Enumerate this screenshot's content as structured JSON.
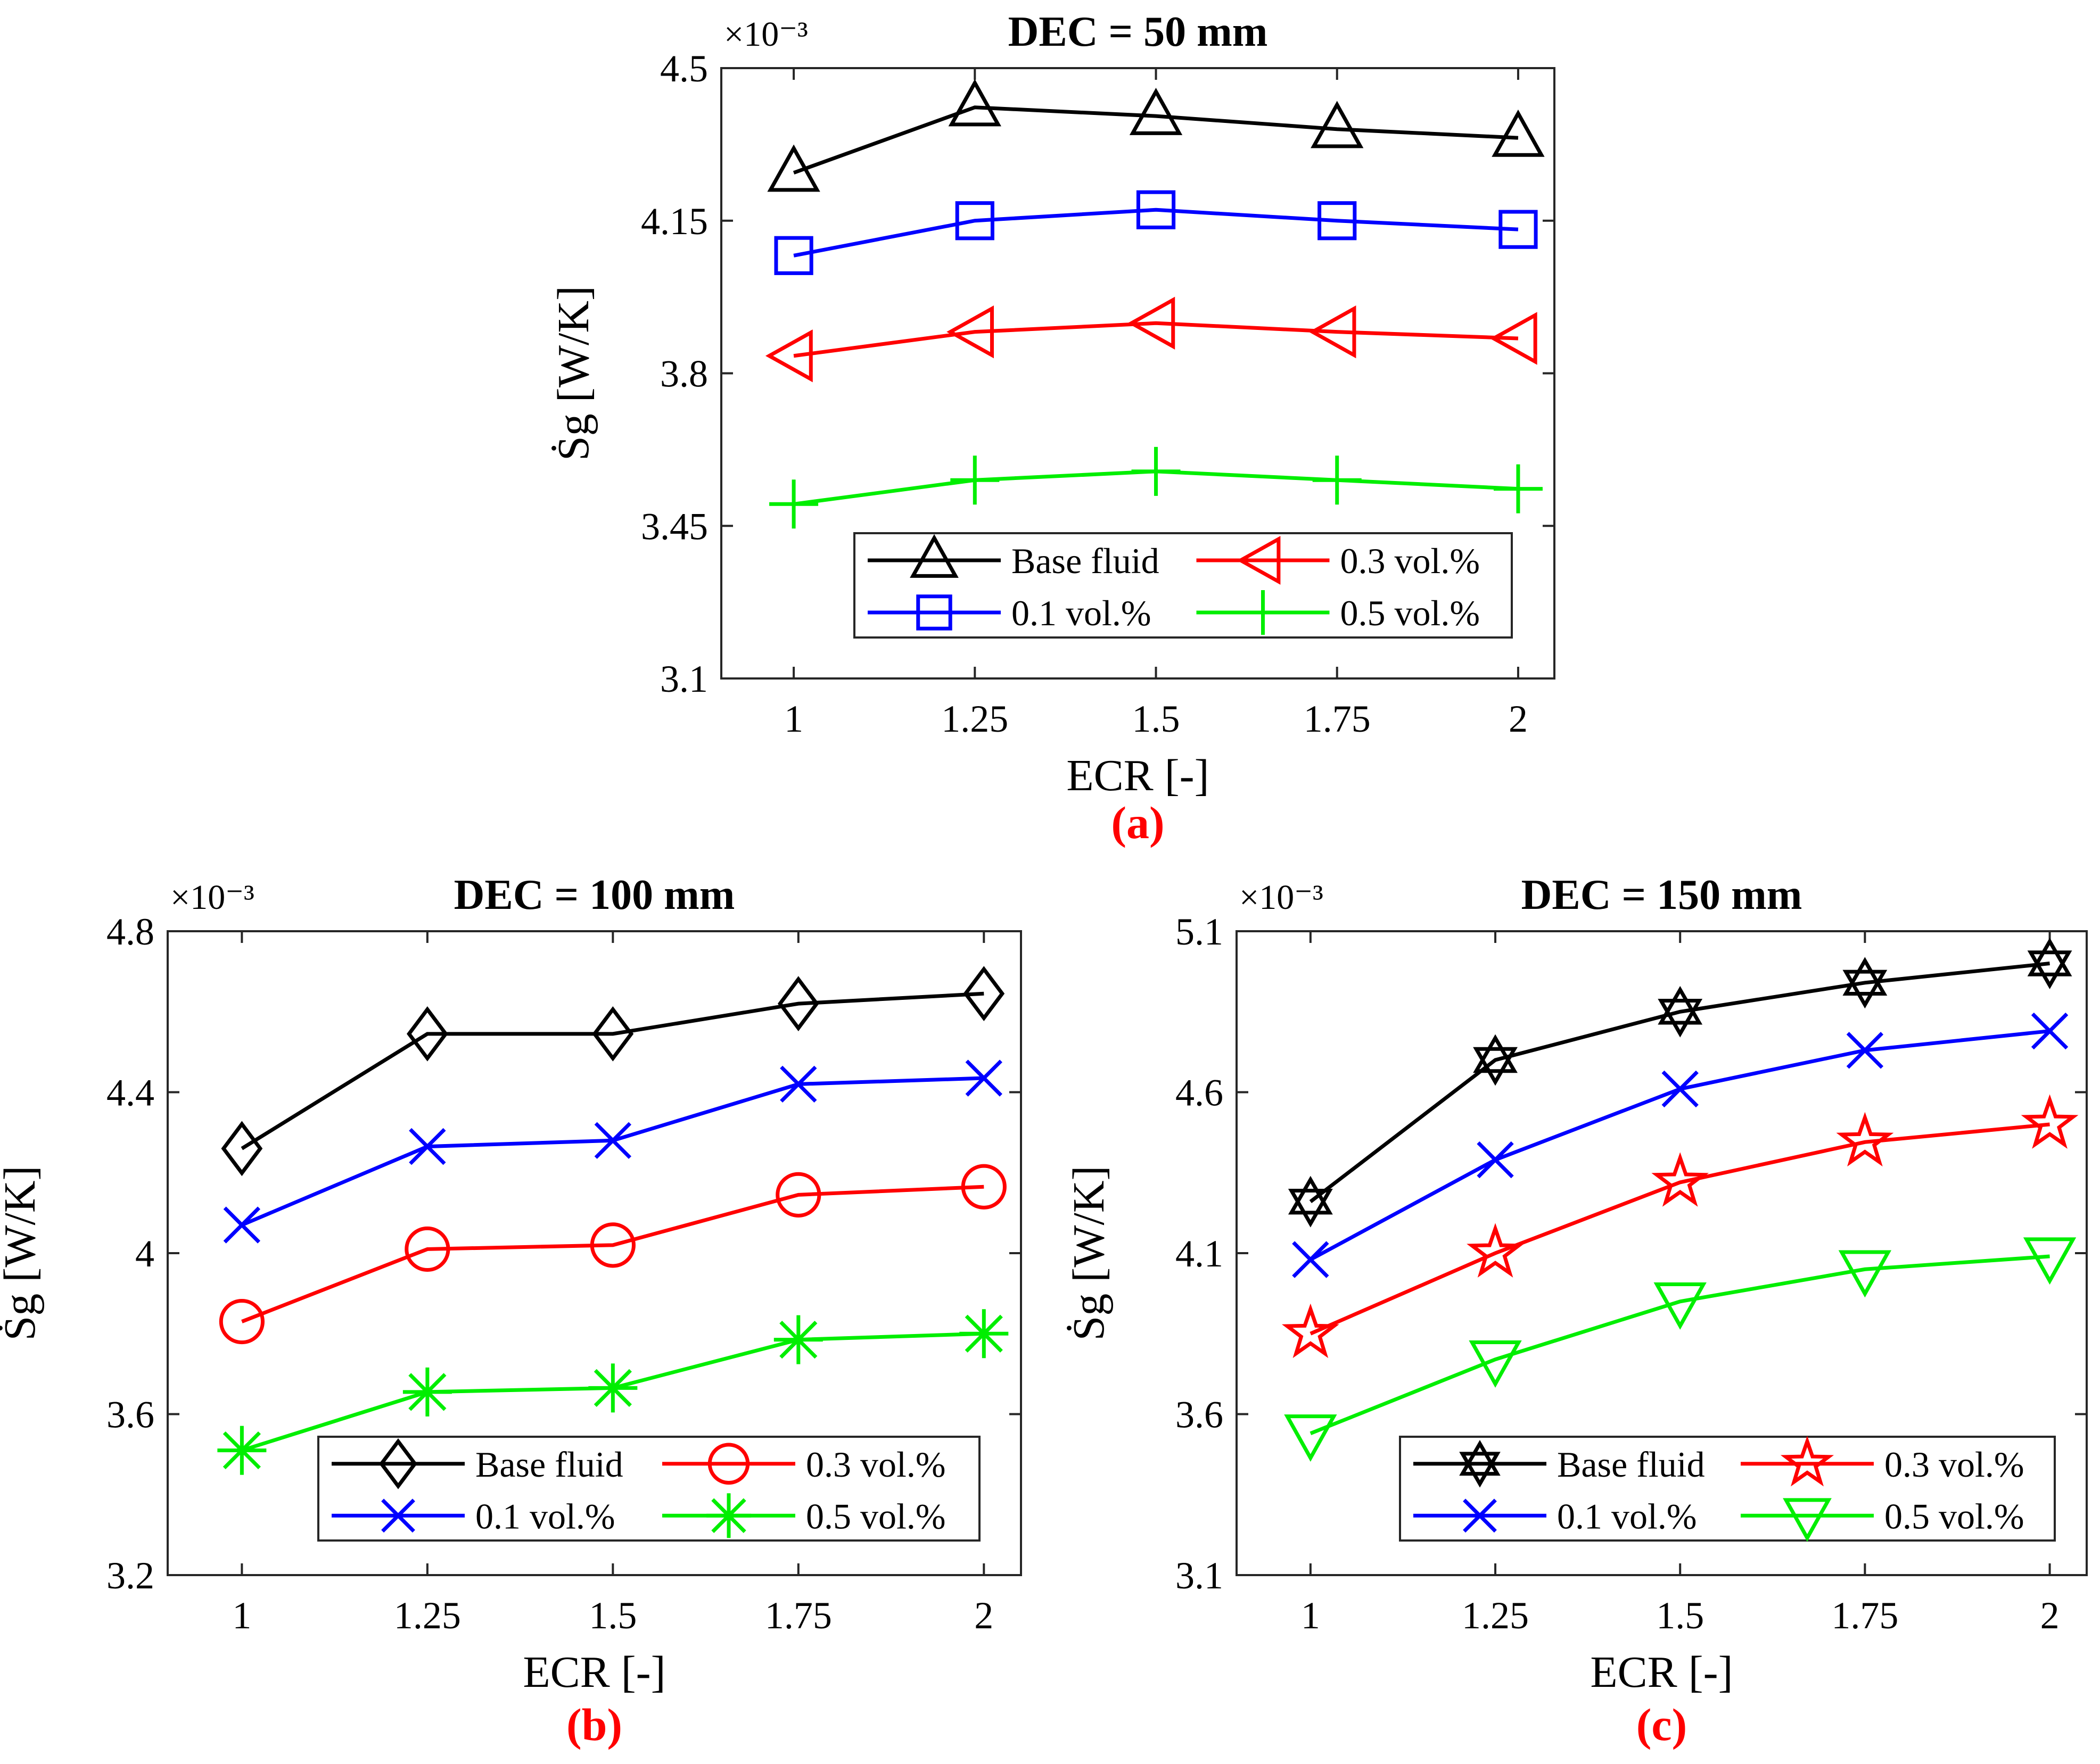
{
  "chart_data": [
    {
      "type": "line",
      "panel_label": "(a)",
      "title": "DEC = 50 mm",
      "xlabel": "ECR [-]",
      "ylabel": "Ṡg [W/K]",
      "y_multiplier": "×10⁻³",
      "x": [
        1,
        1.25,
        1.5,
        1.75,
        2
      ],
      "xticks": [
        "1",
        "1.25",
        "1.5",
        "1.75",
        "2"
      ],
      "yticks": [
        "3.1",
        "3.45",
        "3.8",
        "4.15",
        "4.5"
      ],
      "ylim": [
        3.1,
        4.5
      ],
      "grid": false,
      "legend_position": "bottom-right",
      "series": [
        {
          "name": "Base fluid",
          "values": [
            4.26,
            4.41,
            4.39,
            4.36,
            4.34
          ],
          "color": "#000000",
          "marker": "triangle-up"
        },
        {
          "name": "0.1 vol.%",
          "values": [
            4.07,
            4.15,
            4.175,
            4.15,
            4.13
          ],
          "color": "#0000ff",
          "marker": "square"
        },
        {
          "name": "0.3 vol.%",
          "values": [
            3.84,
            3.895,
            3.915,
            3.895,
            3.88
          ],
          "color": "#ff0000",
          "marker": "triangle-left"
        },
        {
          "name": "0.5 vol.%",
          "values": [
            3.5,
            3.555,
            3.575,
            3.555,
            3.535
          ],
          "color": "#00ee00",
          "marker": "plus"
        }
      ]
    },
    {
      "type": "line",
      "panel_label": "(b)",
      "title": "DEC = 100 mm",
      "xlabel": "ECR [-]",
      "ylabel": "Ṡg [W/K]",
      "y_multiplier": "×10⁻³",
      "x": [
        1,
        1.25,
        1.5,
        1.75,
        2
      ],
      "xticks": [
        "1",
        "1.25",
        "1.5",
        "1.75",
        "2"
      ],
      "yticks": [
        "3.2",
        "3.6",
        "4",
        "4.4",
        "4.8"
      ],
      "ylim": [
        3.2,
        4.8
      ],
      "grid": false,
      "legend_position": "bottom-right",
      "series": [
        {
          "name": "Base fluid",
          "values": [
            4.26,
            4.545,
            4.545,
            4.62,
            4.645
          ],
          "color": "#000000",
          "marker": "diamond"
        },
        {
          "name": "0.1 vol.%",
          "values": [
            4.07,
            4.265,
            4.28,
            4.42,
            4.435
          ],
          "color": "#0000ff",
          "marker": "x"
        },
        {
          "name": "0.3 vol.%",
          "values": [
            3.83,
            4.01,
            4.02,
            4.145,
            4.165
          ],
          "color": "#ff0000",
          "marker": "circle"
        },
        {
          "name": "0.5 vol.%",
          "values": [
            3.51,
            3.655,
            3.665,
            3.785,
            3.8
          ],
          "color": "#00ee00",
          "marker": "asterisk"
        }
      ]
    },
    {
      "type": "line",
      "panel_label": "(c)",
      "title": "DEC = 150 mm",
      "xlabel": "ECR [-]",
      "ylabel": "Ṡg [W/K]",
      "y_multiplier": "×10⁻³",
      "x": [
        1,
        1.25,
        1.5,
        1.75,
        2
      ],
      "xticks": [
        "1",
        "1.25",
        "1.5",
        "1.75",
        "2"
      ],
      "yticks": [
        "3.1",
        "3.6",
        "4.1",
        "4.6",
        "5.1"
      ],
      "ylim": [
        3.1,
        5.1
      ],
      "grid": false,
      "legend_position": "bottom-right",
      "series": [
        {
          "name": "Base fluid",
          "values": [
            4.26,
            4.7,
            4.85,
            4.94,
            5.0
          ],
          "color": "#000000",
          "marker": "hexagram"
        },
        {
          "name": "0.1 vol.%",
          "values": [
            4.08,
            4.39,
            4.61,
            4.73,
            4.79
          ],
          "color": "#0000ff",
          "marker": "x"
        },
        {
          "name": "0.3 vol.%",
          "values": [
            3.85,
            4.1,
            4.32,
            4.445,
            4.5
          ],
          "color": "#ff0000",
          "marker": "pentagram"
        },
        {
          "name": "0.5 vol.%",
          "values": [
            3.54,
            3.77,
            3.95,
            4.05,
            4.09
          ],
          "color": "#00ee00",
          "marker": "triangle-down"
        }
      ]
    }
  ]
}
